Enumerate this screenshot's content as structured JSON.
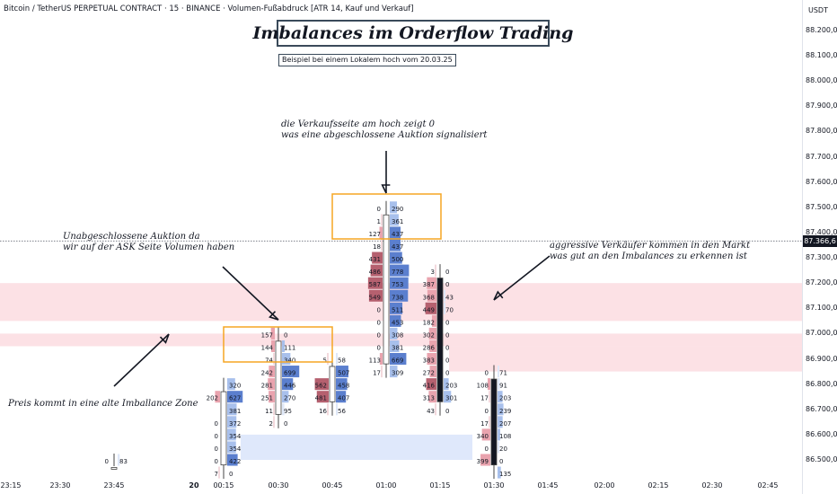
{
  "header": {
    "symbol_line": "Bitcoin / TetherUS PERPETUAL CONTRACT · 15 · BINANCE · Volumen-Fußabdruck [ATR 14, Kauf und Verkauf]"
  },
  "title": "Imbalances im Orderflow Trading",
  "subtitle": "Beispiel bei einem Lokalem hoch vom 20.03.25",
  "annotations": {
    "top": "die Verkaufsseite am hoch zeigt 0\nwas eine abgeschlossene Auktion signalisiert",
    "left": "Unabgeschlossene Auktion da\nwir auf der ASK Seite Volumen haben",
    "right": "aggressive Verkäufer kommen in den Markt\nwas gut an den Imbalances zu erkennen ist",
    "bottom_left": "Preis kommt in eine alte Imballance Zone"
  },
  "colors": {
    "sell": "#b5606f",
    "sell_light": "#e9a3ae",
    "buy": "#5b7fce",
    "buy_light": "#a8c0ec",
    "poc": "#f5d6a4",
    "zone_red": "#fbd7dc",
    "zone_blue": "#dce6fb",
    "highlight": "#f5a623"
  },
  "chart_data": {
    "type": "footprint",
    "currency": "USDT",
    "current_price": "87.366,6",
    "price_ticks": [
      "88.200,0",
      "88.100,0",
      "88.000,0",
      "87.900,0",
      "87.800,0",
      "87.700,0",
      "87.600,0",
      "87.500,0",
      "87.400,0",
      "87.300,0",
      "87.200,0",
      "87.100,0",
      "87.000,0",
      "86.900,0",
      "86.800,0",
      "86.700,0",
      "86.600,0",
      "86.500,0"
    ],
    "time_ticks": [
      {
        "label": "23:15",
        "bold": false
      },
      {
        "label": "23:30",
        "bold": false
      },
      {
        "label": "23:45",
        "bold": false
      },
      {
        "label": "20",
        "bold": true
      },
      {
        "label": "00:15",
        "bold": false
      },
      {
        "label": "00:30",
        "bold": false
      },
      {
        "label": "00:45",
        "bold": false
      },
      {
        "label": "01:00",
        "bold": false
      },
      {
        "label": "01:15",
        "bold": false
      },
      {
        "label": "01:30",
        "bold": false
      },
      {
        "label": "01:45",
        "bold": false
      },
      {
        "label": "02:00",
        "bold": false
      },
      {
        "label": "02:15",
        "bold": false
      },
      {
        "label": "02:30",
        "bold": false
      },
      {
        "label": "02:45",
        "bold": false
      }
    ],
    "candles": [
      {
        "time": "23:45",
        "rows": [
          {
            "price": 86500,
            "sell": "0",
            "buy": "83"
          }
        ]
      },
      {
        "time": "00:15",
        "rows": [
          {
            "price": 86800,
            "sell": "",
            "buy": "320"
          },
          {
            "price": 86750,
            "sell": "202",
            "buy": "627"
          },
          {
            "price": 86700,
            "sell": "",
            "buy": "381"
          },
          {
            "price": 86650,
            "sell": "0",
            "buy": "372"
          },
          {
            "price": 86600,
            "sell": "0",
            "buy": "354"
          },
          {
            "price": 86550,
            "sell": "0",
            "buy": "354"
          },
          {
            "price": 86500,
            "sell": "0",
            "buy": "422"
          },
          {
            "price": 86450,
            "sell": "7",
            "buy": "0"
          }
        ]
      },
      {
        "time": "00:30",
        "rows": [
          {
            "price": 87000,
            "sell": "157",
            "buy": "0"
          },
          {
            "price": 86950,
            "sell": "144",
            "buy": "111"
          },
          {
            "price": 86900,
            "sell": "74",
            "buy": "340"
          },
          {
            "price": 86850,
            "sell": "242",
            "buy": "699"
          },
          {
            "price": 86800,
            "sell": "281",
            "buy": "446"
          },
          {
            "price": 86750,
            "sell": "251",
            "buy": "270"
          },
          {
            "price": 86700,
            "sell": "11",
            "buy": "95"
          },
          {
            "price": 86650,
            "sell": "2",
            "buy": "0"
          }
        ]
      },
      {
        "time": "00:45",
        "rows": [
          {
            "price": 86900,
            "sell": "5",
            "buy": "58"
          },
          {
            "price": 86850,
            "sell": "",
            "buy": "507"
          },
          {
            "price": 86800,
            "sell": "562",
            "buy": "458"
          },
          {
            "price": 86750,
            "sell": "481",
            "buy": "407"
          },
          {
            "price": 86700,
            "sell": "16",
            "buy": "56"
          }
        ]
      },
      {
        "time": "01:00",
        "rows": [
          {
            "price": 87500,
            "sell": "0",
            "buy": "290"
          },
          {
            "price": 87450,
            "sell": "1",
            "buy": "361"
          },
          {
            "price": 87400,
            "sell": "127",
            "buy": "437"
          },
          {
            "price": 87350,
            "sell": "18",
            "buy": "437"
          },
          {
            "price": 87300,
            "sell": "431",
            "buy": "500"
          },
          {
            "price": 87250,
            "sell": "486",
            "buy": "778"
          },
          {
            "price": 87200,
            "sell": "587",
            "buy": "753"
          },
          {
            "price": 87150,
            "sell": "549",
            "buy": "738"
          },
          {
            "price": 87100,
            "sell": "0",
            "buy": "511"
          },
          {
            "price": 87050,
            "sell": "0",
            "buy": "453"
          },
          {
            "price": 87000,
            "sell": "0",
            "buy": "308"
          },
          {
            "price": 86950,
            "sell": "0",
            "buy": "381"
          },
          {
            "price": 86900,
            "sell": "113",
            "buy": "669"
          },
          {
            "price": 86850,
            "sell": "17",
            "buy": "309"
          }
        ]
      },
      {
        "time": "01:15",
        "rows": [
          {
            "price": 87250,
            "sell": "3",
            "buy": "0"
          },
          {
            "price": 87200,
            "sell": "387",
            "buy": "0"
          },
          {
            "price": 87150,
            "sell": "368",
            "buy": "43"
          },
          {
            "price": 87100,
            "sell": "449",
            "buy": "70"
          },
          {
            "price": 87050,
            "sell": "182",
            "buy": "0"
          },
          {
            "price": 87000,
            "sell": "302",
            "buy": "0"
          },
          {
            "price": 86950,
            "sell": "286",
            "buy": "0"
          },
          {
            "price": 86900,
            "sell": "383",
            "buy": "0"
          },
          {
            "price": 86850,
            "sell": "272",
            "buy": "0"
          },
          {
            "price": 86800,
            "sell": "416",
            "buy": "203"
          },
          {
            "price": 86750,
            "sell": "313",
            "buy": "301"
          },
          {
            "price": 86700,
            "sell": "43",
            "buy": "0"
          }
        ]
      },
      {
        "time": "01:30",
        "rows": [
          {
            "price": 86850,
            "sell": "0",
            "buy": "71"
          },
          {
            "price": 86800,
            "sell": "108",
            "buy": "91"
          },
          {
            "price": 86750,
            "sell": "17",
            "buy": "203"
          },
          {
            "price": 86700,
            "sell": "0",
            "buy": "239"
          },
          {
            "price": 86650,
            "sell": "17",
            "buy": "207"
          },
          {
            "price": 86600,
            "sell": "340",
            "buy": "108"
          },
          {
            "price": 86550,
            "sell": "0",
            "buy": "20"
          },
          {
            "price": 86500,
            "sell": "399",
            "buy": "0"
          },
          {
            "price": 86450,
            "sell": "",
            "buy": "135"
          }
        ]
      }
    ]
  }
}
